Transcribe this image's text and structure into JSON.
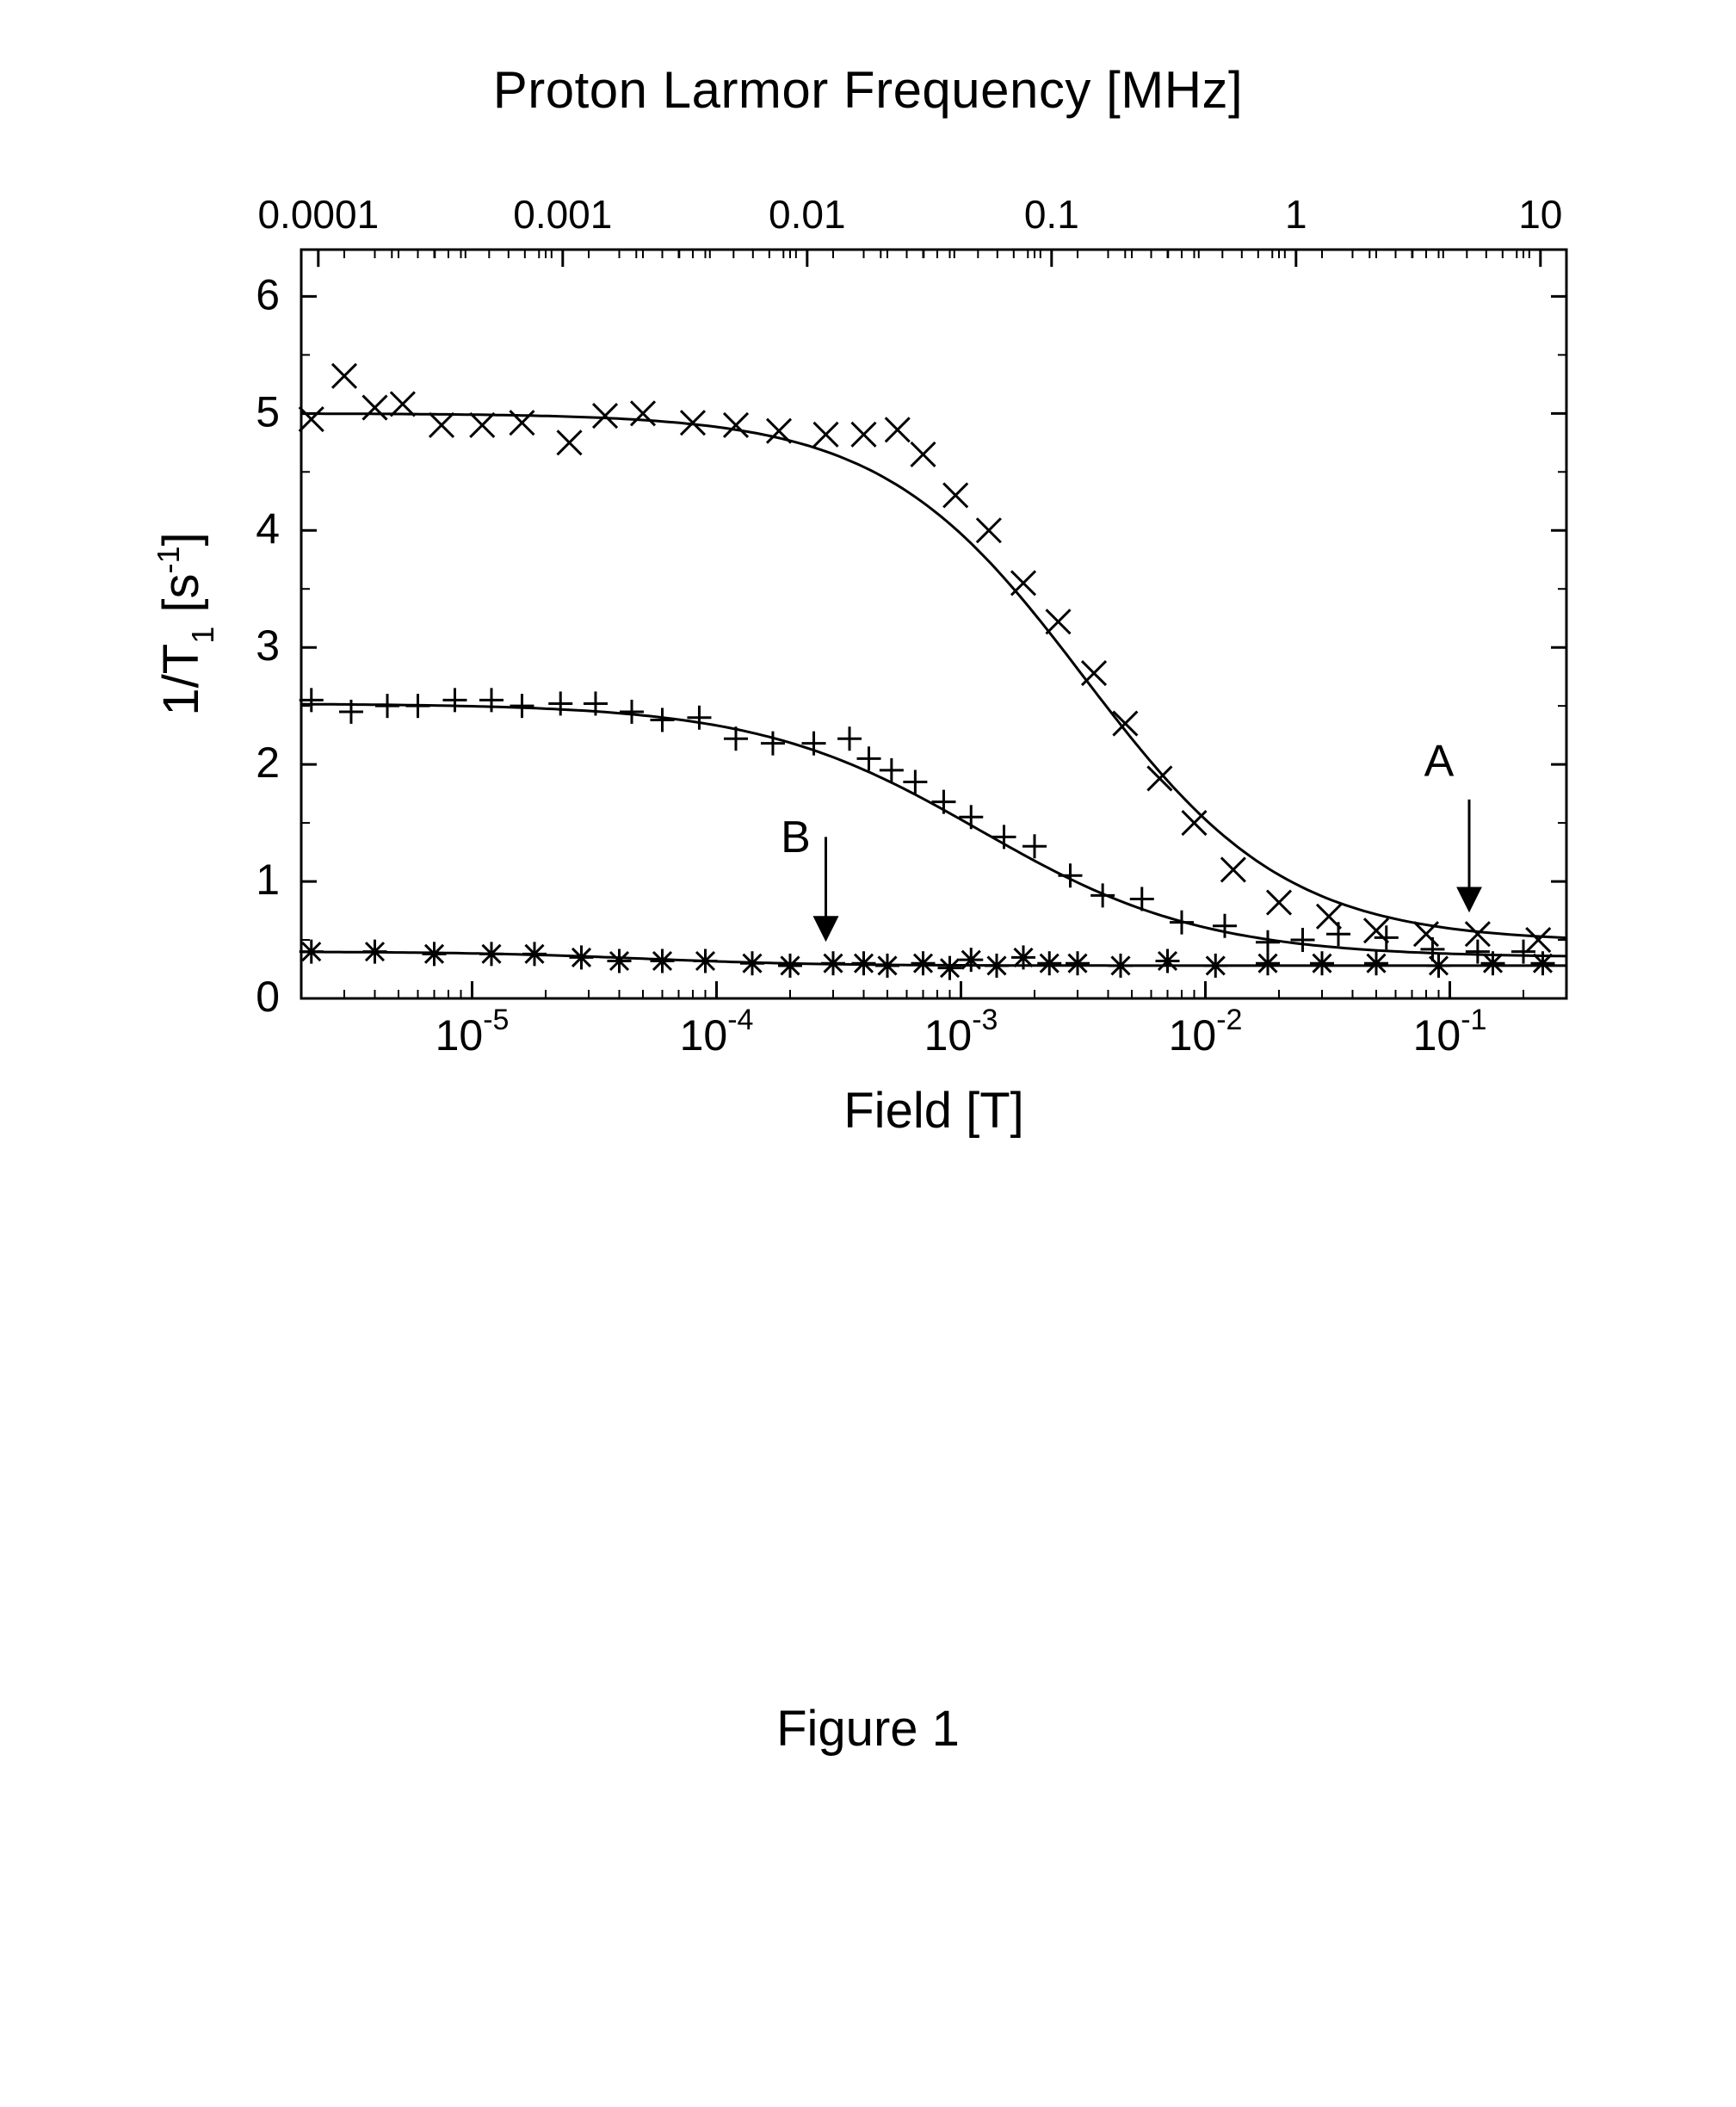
{
  "figure": {
    "caption": "Figure 1",
    "top_title": "Proton Larmor Frequency [MHz]",
    "chart": {
      "type": "scatter",
      "background_color": "#ffffff",
      "stroke_color": "#000000",
      "line_width": 3,
      "marker_size": 20,
      "x_axis_bottom": {
        "label": "Field [T]",
        "scale": "log",
        "lim": [
          2e-06,
          0.3
        ],
        "ticks": [
          {
            "value": 1e-05,
            "label_parts": [
              "10",
              "-5"
            ]
          },
          {
            "value": 0.0001,
            "label_parts": [
              "10",
              "-4"
            ]
          },
          {
            "value": 0.001,
            "label_parts": [
              "10",
              "-3"
            ]
          },
          {
            "value": 0.01,
            "label_parts": [
              "10",
              "-2"
            ]
          },
          {
            "value": 0.1,
            "label_parts": [
              "10",
              "-1"
            ]
          }
        ],
        "minor_ticks_per_decade": [
          2,
          3,
          4,
          5,
          6,
          7,
          8,
          9
        ]
      },
      "x_axis_top": {
        "ticks": [
          {
            "value": 0.0001,
            "label": "0.0001"
          },
          {
            "value": 0.001,
            "label": "0.001"
          },
          {
            "value": 0.01,
            "label": "0.01"
          },
          {
            "value": 0.1,
            "label": "0.1"
          },
          {
            "value": 1.0,
            "label": "1"
          },
          {
            "value": 10.0,
            "label": "10"
          }
        ],
        "factor_from_bottom": 42.58
      },
      "y_axis": {
        "label_parts": [
          "1/T",
          "1",
          " [s",
          "-1",
          "]"
        ],
        "scale": "linear",
        "lim": [
          0,
          6.4
        ],
        "ticks": [
          0,
          1,
          2,
          3,
          4,
          5,
          6
        ]
      },
      "annotations": [
        {
          "text": "A",
          "x": 0.12,
          "y_text": 1.9,
          "arrow_from_y": 1.7,
          "arrow_to_y": 0.8
        },
        {
          "text": "B",
          "x": 0.00028,
          "y_text": 1.25,
          "arrow_from_y": 1.38,
          "arrow_to_y": 0.55
        }
      ],
      "series": [
        {
          "name": "x-series",
          "marker": "x",
          "color": "#000000",
          "curve": {
            "y0": 5.0,
            "y1": 0.48,
            "xmid": 0.0032,
            "slope": 1.05
          },
          "points": [
            [
              2.2e-06,
              4.95
            ],
            [
              3e-06,
              5.32
            ],
            [
              4e-06,
              5.05
            ],
            [
              5.2e-06,
              5.08
            ],
            [
              7.5e-06,
              4.9
            ],
            [
              1.1e-05,
              4.9
            ],
            [
              1.6e-05,
              4.92
            ],
            [
              2.5e-05,
              4.75
            ],
            [
              3.5e-05,
              4.98
            ],
            [
              5e-05,
              5.0
            ],
            [
              8e-05,
              4.92
            ],
            [
              0.00012,
              4.9
            ],
            [
              0.00018,
              4.85
            ],
            [
              0.00028,
              4.82
            ],
            [
              0.0004,
              4.82
            ],
            [
              0.00055,
              4.86
            ],
            [
              0.0007,
              4.65
            ],
            [
              0.00095,
              4.3
            ],
            [
              0.0013,
              4.0
            ],
            [
              0.0018,
              3.55
            ],
            [
              0.0025,
              3.22
            ],
            [
              0.0035,
              2.78
            ],
            [
              0.0047,
              2.35
            ],
            [
              0.0065,
              1.88
            ],
            [
              0.009,
              1.5
            ],
            [
              0.013,
              1.1
            ],
            [
              0.02,
              0.82
            ],
            [
              0.032,
              0.7
            ],
            [
              0.05,
              0.58
            ],
            [
              0.08,
              0.55
            ],
            [
              0.13,
              0.55
            ],
            [
              0.23,
              0.5
            ]
          ]
        },
        {
          "name": "plus-series",
          "marker": "+",
          "color": "#000000",
          "curve": {
            "y0": 2.52,
            "y1": 0.35,
            "xmid": 0.0012,
            "slope": 0.95
          },
          "points": [
            [
              2.2e-06,
              2.55
            ],
            [
              3.2e-06,
              2.45
            ],
            [
              4.5e-06,
              2.5
            ],
            [
              6e-06,
              2.5
            ],
            [
              8.5e-06,
              2.55
            ],
            [
              1.2e-05,
              2.55
            ],
            [
              1.6e-05,
              2.5
            ],
            [
              2.3e-05,
              2.52
            ],
            [
              3.2e-05,
              2.52
            ],
            [
              4.5e-05,
              2.45
            ],
            [
              6e-05,
              2.38
            ],
            [
              8.5e-05,
              2.4
            ],
            [
              0.00012,
              2.22
            ],
            [
              0.00017,
              2.18
            ],
            [
              0.00025,
              2.18
            ],
            [
              0.00035,
              2.22
            ],
            [
              0.00042,
              2.05
            ],
            [
              0.00052,
              1.95
            ],
            [
              0.00065,
              1.85
            ],
            [
              0.00085,
              1.68
            ],
            [
              0.0011,
              1.55
            ],
            [
              0.0015,
              1.38
            ],
            [
              0.002,
              1.3
            ],
            [
              0.0028,
              1.05
            ],
            [
              0.0038,
              0.88
            ],
            [
              0.0055,
              0.85
            ],
            [
              0.008,
              0.65
            ],
            [
              0.012,
              0.62
            ],
            [
              0.018,
              0.48
            ],
            [
              0.025,
              0.5
            ],
            [
              0.035,
              0.55
            ],
            [
              0.055,
              0.52
            ],
            [
              0.085,
              0.42
            ],
            [
              0.13,
              0.4
            ],
            [
              0.2,
              0.4
            ]
          ]
        },
        {
          "name": "star-series",
          "marker": "*",
          "color": "#000000",
          "curve": {
            "y0": 0.4,
            "y1": 0.28,
            "xmid": 5e-05,
            "slope": 1.2
          },
          "points": [
            [
              2.2e-06,
              0.4
            ],
            [
              4e-06,
              0.4
            ],
            [
              7e-06,
              0.38
            ],
            [
              1.2e-05,
              0.38
            ],
            [
              1.8e-05,
              0.38
            ],
            [
              2.8e-05,
              0.35
            ],
            [
              4e-05,
              0.32
            ],
            [
              6e-05,
              0.32
            ],
            [
              9e-05,
              0.32
            ],
            [
              0.00014,
              0.3
            ],
            [
              0.0002,
              0.28
            ],
            [
              0.0003,
              0.3
            ],
            [
              0.0004,
              0.3
            ],
            [
              0.0005,
              0.28
            ],
            [
              0.0007,
              0.3
            ],
            [
              0.0009,
              0.26
            ],
            [
              0.0011,
              0.33
            ],
            [
              0.0014,
              0.28
            ],
            [
              0.0018,
              0.35
            ],
            [
              0.0023,
              0.3
            ],
            [
              0.003,
              0.3
            ],
            [
              0.0045,
              0.28
            ],
            [
              0.007,
              0.32
            ],
            [
              0.011,
              0.28
            ],
            [
              0.018,
              0.3
            ],
            [
              0.03,
              0.3
            ],
            [
              0.05,
              0.3
            ],
            [
              0.09,
              0.28
            ],
            [
              0.15,
              0.3
            ],
            [
              0.24,
              0.3
            ]
          ]
        }
      ]
    }
  }
}
